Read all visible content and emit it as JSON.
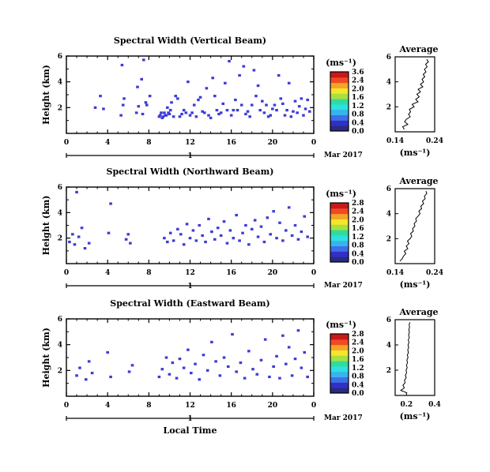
{
  "chart_data": [
    {
      "type": "heatmap",
      "title": "Spectral Width (Vertical Beam)",
      "ylabel": "Height (km)",
      "x_ticks": [
        "0",
        "4",
        "8",
        "12",
        "16",
        "20",
        "0"
      ],
      "xlim": [
        0,
        24
      ],
      "y_ticks": [
        "2",
        "4",
        "6"
      ],
      "ylim": [
        0,
        6
      ],
      "date_tick": "1",
      "date_label": "Mar 2017",
      "colorbar": {
        "unit": "(ms⁻¹)",
        "ticks": [
          "3.6",
          "2.4",
          "2.0",
          "1.6",
          "1.2",
          "0.8",
          "0.4",
          "0.0"
        ]
      },
      "cells_x_hours": [
        2.8,
        3.3,
        3.6,
        5.3,
        5.4,
        5.5,
        5.6,
        6.8,
        6.9,
        7.0,
        7.3,
        7.4,
        7.5,
        7.7,
        7.8,
        8.1,
        9.0,
        9.1,
        9.2,
        9.3,
        9.4,
        9.5,
        9.6,
        9.7,
        9.8,
        9.9,
        10.0,
        10.1,
        10.2,
        10.4,
        10.6,
        10.8,
        11.0,
        11.2,
        11.4,
        11.6,
        11.8,
        12.0,
        12.2,
        12.4,
        12.6,
        12.8,
        13.0,
        13.2,
        13.4,
        13.6,
        13.8,
        14.0,
        14.2,
        14.4,
        14.6,
        14.8,
        15.0,
        15.2,
        15.4,
        15.6,
        15.8,
        16.0,
        16.2,
        16.4,
        16.6,
        16.8,
        17.0,
        17.2,
        17.4,
        17.6,
        17.8,
        18.0,
        18.2,
        18.4,
        18.6,
        18.8,
        19.0,
        19.2,
        19.4,
        19.6,
        19.8,
        20.0,
        20.2,
        20.4,
        20.6,
        20.8,
        21.0,
        21.2,
        21.4,
        21.6,
        21.8,
        22.0,
        22.2,
        22.4,
        22.6,
        22.8,
        23.0,
        23.2,
        23.4,
        23.6,
        23.8
      ],
      "cells_y_km": [
        2.0,
        2.9,
        1.9,
        1.4,
        5.3,
        2.2,
        2.7,
        1.6,
        3.6,
        2.1,
        4.2,
        1.5,
        5.7,
        2.4,
        2.2,
        2.9,
        1.3,
        1.4,
        1.6,
        1.2,
        1.3,
        1.6,
        1.4,
        1.4,
        2.0,
        1.6,
        1.5,
        1.8,
        2.4,
        1.3,
        2.9,
        2.7,
        1.3,
        1.5,
        1.8,
        1.6,
        4.0,
        1.4,
        1.6,
        2.2,
        1.3,
        2.6,
        2.8,
        1.7,
        1.6,
        3.5,
        1.4,
        1.2,
        4.3,
        2.9,
        1.8,
        1.5,
        1.6,
        2.3,
        3.9,
        1.8,
        5.6,
        1.4,
        1.8,
        2.6,
        1.8,
        4.5,
        2.2,
        5.2,
        1.5,
        1.7,
        1.3,
        2.2,
        4.9,
        2.9,
        3.7,
        1.8,
        2.5,
        1.6,
        2.2,
        1.3,
        1.4,
        1.9,
        2.2,
        1.8,
        4.5,
        2.7,
        2.3,
        1.4,
        1.8,
        3.9,
        1.3,
        1.7,
        2.5,
        1.6,
        2.1,
        2.7,
        1.4,
        1.9,
        2.6,
        1.7
      ],
      "average_profile": {
        "title": "Average",
        "xlabel": "(ms⁻¹)",
        "x_ticks": [
          "0.14",
          "0.24"
        ],
        "xlim": [
          0.14,
          0.24
        ],
        "y_ticks": [
          "2",
          "4",
          "6"
        ],
        "ylim": [
          0,
          6
        ],
        "heights_km": [
          0.2,
          0.4,
          0.6,
          0.8,
          1.0,
          1.2,
          1.4,
          1.6,
          1.8,
          2.0,
          2.2,
          2.4,
          2.6,
          2.8,
          3.0,
          3.2,
          3.4,
          3.6,
          3.8,
          4.0,
          4.2,
          4.4,
          4.6,
          4.8,
          5.0,
          5.2,
          5.4,
          5.6,
          5.8
        ],
        "values": [
          0.163,
          0.159,
          0.172,
          0.164,
          0.168,
          0.178,
          0.174,
          0.179,
          0.176,
          0.188,
          0.183,
          0.198,
          0.192,
          0.201,
          0.195,
          0.204,
          0.198,
          0.21,
          0.204,
          0.212,
          0.208,
          0.215,
          0.211,
          0.218,
          0.214,
          0.221,
          0.217,
          0.224,
          0.22
        ]
      }
    },
    {
      "type": "heatmap",
      "title": "Spectral Width (Northward Beam)",
      "ylabel": "Height (km)",
      "x_ticks": [
        "0",
        "4",
        "8",
        "12",
        "16",
        "20",
        "0"
      ],
      "xlim": [
        0,
        24
      ],
      "y_ticks": [
        "2",
        "4",
        "6"
      ],
      "ylim": [
        0,
        6
      ],
      "date_tick": "1",
      "date_label": "Mar 2017",
      "colorbar": {
        "unit": "(ms⁻¹)",
        "ticks": [
          "2.8",
          "2.4",
          "2.0",
          "1.6",
          "1.2",
          "0.8",
          "0.4",
          "0.0"
        ]
      },
      "cells_x_hours": [
        0.3,
        0.6,
        0.8,
        1.0,
        1.2,
        1.5,
        1.8,
        2.2,
        4.1,
        4.3,
        5.8,
        6.0,
        6.2,
        9.5,
        9.8,
        10.1,
        10.4,
        10.8,
        11.1,
        11.4,
        11.7,
        12.0,
        12.3,
        12.6,
        12.9,
        13.2,
        13.5,
        13.8,
        14.1,
        14.4,
        14.7,
        15.0,
        15.3,
        15.6,
        15.9,
        16.2,
        16.5,
        16.8,
        17.1,
        17.4,
        17.7,
        18.0,
        18.3,
        18.6,
        18.9,
        19.2,
        19.5,
        19.8,
        20.1,
        20.4,
        20.7,
        21.0,
        21.3,
        21.6,
        21.9,
        22.2,
        22.5,
        22.8,
        23.1,
        23.4
      ],
      "cells_y_km": [
        1.7,
        2.3,
        1.5,
        5.6,
        2.1,
        2.8,
        1.2,
        1.6,
        2.4,
        4.7,
        1.9,
        2.3,
        1.6,
        2.0,
        1.7,
        2.4,
        1.8,
        2.7,
        2.3,
        1.5,
        3.1,
        2.0,
        2.6,
        1.8,
        3.0,
        2.2,
        1.7,
        3.5,
        2.5,
        1.9,
        2.8,
        2.2,
        3.3,
        1.6,
        2.6,
        2.0,
        3.8,
        1.8,
        2.4,
        3.0,
        1.5,
        2.7,
        3.4,
        2.1,
        2.9,
        1.7,
        3.6,
        2.3,
        4.1,
        2.0,
        3.2,
        1.8,
        2.6,
        4.4,
        2.2,
        3.0,
        1.9,
        2.5,
        3.7,
        2.1
      ],
      "average_profile": {
        "title": "Average",
        "xlabel": "(ms⁻¹)",
        "x_ticks": [
          "0.14",
          "0.24"
        ],
        "xlim": [
          0.14,
          0.24
        ],
        "y_ticks": [
          "2",
          "4",
          "6"
        ],
        "ylim": [
          0,
          6
        ],
        "heights_km": [
          0.2,
          0.4,
          0.6,
          0.8,
          1.0,
          1.2,
          1.4,
          1.6,
          1.8,
          2.0,
          2.2,
          2.4,
          2.6,
          2.8,
          3.0,
          3.2,
          3.4,
          3.6,
          3.8,
          4.0,
          4.2,
          4.4,
          4.6,
          4.8,
          5.0,
          5.2,
          5.4,
          5.6,
          5.8
        ],
        "values": [
          0.152,
          0.158,
          0.161,
          0.167,
          0.163,
          0.172,
          0.168,
          0.175,
          0.171,
          0.178,
          0.182,
          0.179,
          0.186,
          0.184,
          0.19,
          0.188,
          0.194,
          0.192,
          0.198,
          0.203,
          0.2,
          0.207,
          0.205,
          0.212,
          0.209,
          0.216,
          0.214,
          0.22,
          0.218
        ]
      }
    },
    {
      "type": "heatmap",
      "title": "Spectral Width (Eastward Beam)",
      "ylabel": "Height (km)",
      "xlabel": "Local Time",
      "x_ticks": [
        "0",
        "4",
        "8",
        "12",
        "16",
        "20",
        "0"
      ],
      "xlim": [
        0,
        24
      ],
      "y_ticks": [
        "2",
        "4",
        "6"
      ],
      "ylim": [
        0,
        6
      ],
      "date_tick": "1",
      "date_label": "Mar 2017",
      "colorbar": {
        "unit": "(ms⁻¹)",
        "ticks": [
          "2.8",
          "2.4",
          "2.0",
          "1.6",
          "1.2",
          "0.8",
          "0.4",
          "0.0"
        ]
      },
      "cells_x_hours": [
        1.0,
        1.3,
        1.9,
        2.2,
        2.5,
        4.0,
        4.3,
        6.1,
        6.4,
        9.0,
        9.3,
        9.7,
        10.0,
        10.3,
        10.7,
        11.0,
        11.4,
        11.8,
        12.1,
        12.5,
        12.9,
        13.3,
        13.7,
        14.1,
        14.5,
        14.9,
        15.3,
        15.7,
        16.1,
        16.5,
        16.9,
        17.3,
        17.7,
        18.1,
        18.5,
        18.9,
        19.3,
        19.7,
        20.1,
        20.4,
        20.7,
        21.0,
        21.3,
        21.6,
        21.9,
        22.2,
        22.5,
        22.8,
        23.1,
        23.4
      ],
      "cells_y_km": [
        1.6,
        2.2,
        1.3,
        2.7,
        1.8,
        3.4,
        1.5,
        1.9,
        2.4,
        1.5,
        2.1,
        3.0,
        1.7,
        2.6,
        1.4,
        2.9,
        2.2,
        3.6,
        1.8,
        2.5,
        1.3,
        3.2,
        2.0,
        4.2,
        2.7,
        1.6,
        3.0,
        2.3,
        4.8,
        1.9,
        2.6,
        1.4,
        3.5,
        2.1,
        1.7,
        2.8,
        4.4,
        1.5,
        2.3,
        3.1,
        1.4,
        4.7,
        2.5,
        3.8,
        1.6,
        2.9,
        5.1,
        2.2,
        3.4,
        1.5
      ],
      "average_profile": {
        "title": "Average",
        "xlabel": "(ms⁻¹)",
        "x_ticks": [
          "0.2",
          "0.4"
        ],
        "xlim": [
          0.12,
          0.4
        ],
        "y_ticks": [
          "2",
          "4",
          "6"
        ],
        "ylim": [
          0,
          6
        ],
        "heights_km": [
          0.2,
          0.4,
          0.6,
          0.8,
          1.0,
          1.2,
          1.4,
          1.6,
          1.8,
          2.0,
          2.2,
          2.4,
          2.6,
          2.8,
          3.0,
          3.2,
          3.4,
          3.6,
          3.8,
          4.0,
          4.2,
          4.4,
          4.6,
          4.8,
          5.0,
          5.2,
          5.4,
          5.6,
          5.8
        ],
        "values": [
          0.205,
          0.16,
          0.185,
          0.175,
          0.19,
          0.186,
          0.198,
          0.192,
          0.201,
          0.197,
          0.205,
          0.2,
          0.208,
          0.203,
          0.211,
          0.206,
          0.214,
          0.209,
          0.216,
          0.211,
          0.218,
          0.213,
          0.22,
          0.215,
          0.221,
          0.217,
          0.222,
          0.219,
          0.224
        ]
      }
    }
  ],
  "colors": {
    "cell": "#3c3cd8",
    "line": "#000000"
  }
}
